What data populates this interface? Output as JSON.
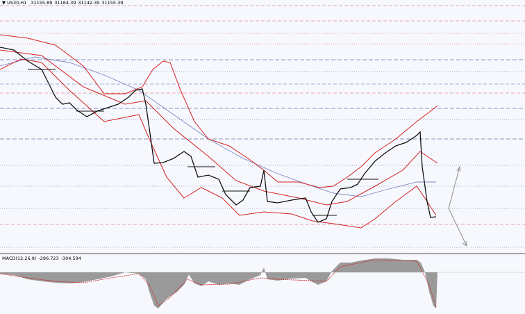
{
  "header": {
    "symbol": "US30,H1",
    "open": 31155.89,
    "high": 31164.39,
    "low": 31142.39,
    "close": 31155.39
  },
  "macd": {
    "label": "MACD(12,26,9)",
    "main": -296.723,
    "signal": -304.594
  }
}
